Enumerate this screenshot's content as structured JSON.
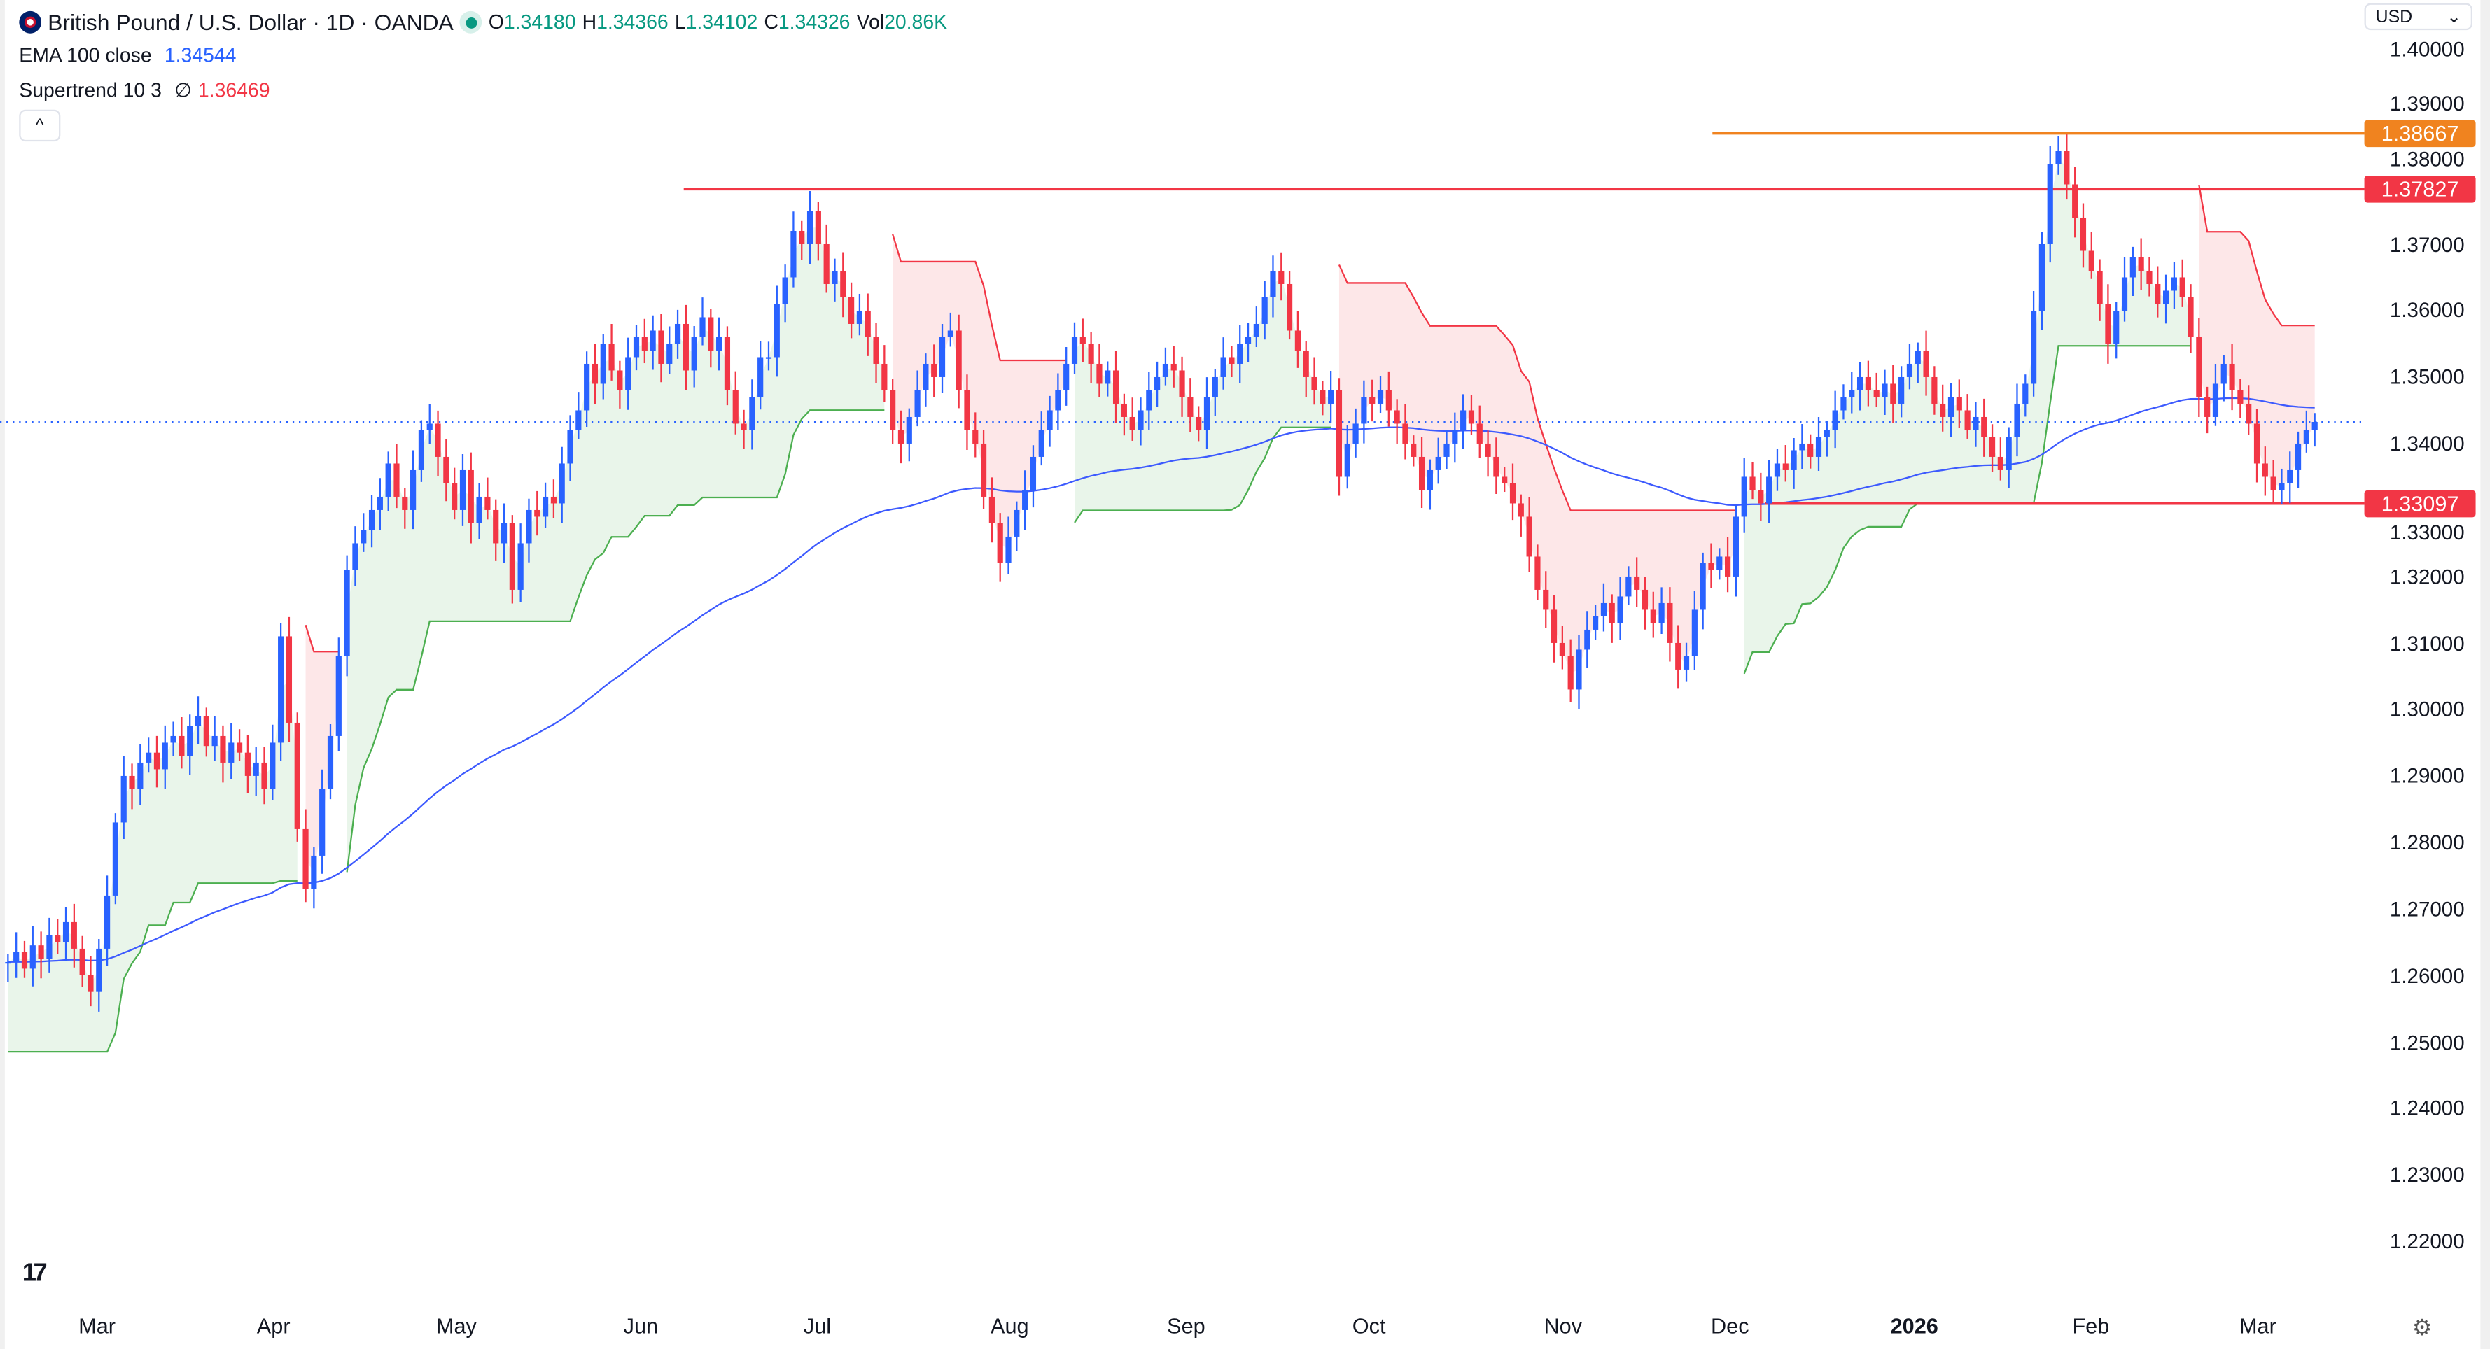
{
  "header": {
    "symbol": "British Pound / U.S. Dollar · 1D · OANDA",
    "open_label": "O",
    "open": "1.34180",
    "high_label": "H",
    "high": "1.34366",
    "low_label": "L",
    "low": "1.34102",
    "close_label": "C",
    "close": "1.34326",
    "vol_label": "Vol",
    "vol": "20.86K"
  },
  "indicators": {
    "ema_label": "EMA 100 close",
    "ema_value": "1.34544",
    "st_label": "Supertrend 10 3",
    "st_icon": "∅",
    "st_value": "1.36469",
    "collapse": "^"
  },
  "currency": "USD",
  "colors": {
    "up": "#2962ff",
    "down": "#f23645",
    "ema": "#3d5afe",
    "st_up": "#4caf50",
    "st_down": "#f23645",
    "orange": "#f0831f"
  },
  "price_axis": [
    "1.40000",
    "1.39000",
    "1.38000",
    "1.37000",
    "1.36000",
    "1.35000",
    "1.34000",
    "1.33000",
    "1.32000",
    "1.31000",
    "1.30000",
    "1.29000",
    "1.28000",
    "1.27000",
    "1.26000",
    "1.25000",
    "1.24000",
    "1.23000",
    "1.22000"
  ],
  "time_axis": [
    "Mar",
    "Apr",
    "May",
    "Jun",
    "Jul",
    "Aug",
    "Sep",
    "Oct",
    "Nov",
    "Dec",
    "2026",
    "Feb",
    "Mar"
  ],
  "levels": [
    {
      "value": "1.38667",
      "color": "#f0831f"
    },
    {
      "value": "1.37827",
      "color": "#f23645"
    },
    {
      "value": "1.33097",
      "color": "#f23645"
    }
  ],
  "chart_data": {
    "type": "candlestick",
    "symbol": "GBPUSD",
    "last": 1.34326,
    "ylim": [
      1.22,
      1.4
    ],
    "closes": [
      1.262,
      1.2635,
      1.261,
      1.2645,
      1.2625,
      1.266,
      1.265,
      1.268,
      1.264,
      1.26,
      1.2575,
      1.264,
      1.272,
      1.283,
      1.29,
      1.288,
      1.292,
      1.2935,
      1.291,
      1.295,
      1.296,
      1.293,
      1.2975,
      1.299,
      1.2945,
      1.296,
      1.292,
      1.295,
      1.2935,
      1.29,
      1.292,
      1.288,
      1.295,
      1.311,
      1.298,
      1.282,
      1.273,
      1.278,
      1.288,
      1.296,
      1.308,
      1.321,
      1.325,
      1.327,
      1.33,
      1.332,
      1.337,
      1.332,
      1.33,
      1.336,
      1.342,
      1.343,
      1.338,
      1.334,
      1.33,
      1.336,
      1.328,
      1.332,
      1.33,
      1.325,
      1.328,
      1.318,
      1.325,
      1.33,
      1.329,
      1.332,
      1.331,
      1.337,
      1.342,
      1.345,
      1.352,
      1.349,
      1.355,
      1.351,
      1.348,
      1.353,
      1.356,
      1.354,
      1.357,
      1.352,
      1.355,
      1.358,
      1.351,
      1.356,
      1.359,
      1.354,
      1.356,
      1.348,
      1.343,
      1.342,
      1.347,
      1.353,
      1.353,
      1.361,
      1.365,
      1.372,
      1.37,
      1.375,
      1.37,
      1.364,
      1.366,
      1.362,
      1.358,
      1.36,
      1.356,
      1.352,
      1.348,
      1.342,
      1.34,
      1.344,
      1.348,
      1.352,
      1.35,
      1.356,
      1.357,
      1.348,
      1.342,
      1.34,
      1.332,
      1.328,
      1.322,
      1.326,
      1.33,
      1.333,
      1.338,
      1.342,
      1.345,
      1.348,
      1.352,
      1.356,
      1.355,
      1.352,
      1.349,
      1.351,
      1.346,
      1.344,
      1.342,
      1.345,
      1.348,
      1.35,
      1.352,
      1.351,
      1.347,
      1.344,
      1.342,
      1.347,
      1.35,
      1.353,
      1.352,
      1.355,
      1.356,
      1.358,
      1.362,
      1.366,
      1.364,
      1.357,
      1.354,
      1.35,
      1.348,
      1.346,
      1.348,
      1.335,
      1.34,
      1.343,
      1.347,
      1.346,
      1.348,
      1.345,
      1.343,
      1.34,
      1.338,
      1.333,
      1.336,
      1.338,
      1.34,
      1.342,
      1.345,
      1.343,
      1.34,
      1.338,
      1.335,
      1.334,
      1.331,
      1.329,
      1.323,
      1.318,
      1.315,
      1.31,
      1.308,
      1.303,
      1.309,
      1.312,
      1.314,
      1.316,
      1.313,
      1.317,
      1.32,
      1.318,
      1.315,
      1.313,
      1.316,
      1.31,
      1.306,
      1.308,
      1.315,
      1.322,
      1.321,
      1.323,
      1.32,
      1.329,
      1.335,
      1.333,
      1.331,
      1.335,
      1.337,
      1.336,
      1.339,
      1.34,
      1.338,
      1.341,
      1.342,
      1.345,
      1.347,
      1.348,
      1.35,
      1.348,
      1.347,
      1.349,
      1.346,
      1.35,
      1.352,
      1.354,
      1.35,
      1.346,
      1.344,
      1.347,
      1.345,
      1.342,
      1.344,
      1.341,
      1.338,
      1.336,
      1.341,
      1.346,
      1.349,
      1.36,
      1.37,
      1.382,
      1.384,
      1.379,
      1.374,
      1.369,
      1.366,
      1.361,
      1.355,
      1.36,
      1.365,
      1.368,
      1.366,
      1.364,
      1.361,
      1.363,
      1.365,
      1.362,
      1.356,
      1.347,
      1.344,
      1.349,
      1.352,
      1.348,
      1.346,
      1.343,
      1.337,
      1.335,
      1.333,
      1.334,
      1.336,
      1.34,
      1.342,
      1.34326
    ]
  }
}
